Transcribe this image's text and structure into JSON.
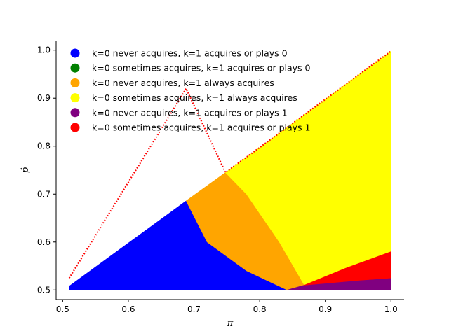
{
  "chart_data": {
    "type": "scatter",
    "title": "",
    "xlabel": "π",
    "ylabel": "p̂",
    "xlim": [
      0.49,
      1.02
    ],
    "ylim": [
      0.48,
      1.02
    ],
    "xticks": [
      0.5,
      0.6,
      0.7,
      0.8,
      0.9,
      1.0
    ],
    "xtick_labels": [
      "0.5",
      "0.6",
      "0.7",
      "0.8",
      "0.9",
      "1.0"
    ],
    "yticks": [
      0.5,
      0.6,
      0.7,
      0.8,
      0.9,
      1.0
    ],
    "ytick_labels": [
      "0.5",
      "0.6",
      "0.7",
      "0.8",
      "0.9",
      "1.0"
    ],
    "grid": false,
    "legend_position": "top-left",
    "series": [
      {
        "name": "k=0 never acquires, k=1 acquires or plays 0",
        "color": "#0000ff",
        "polygon": [
          [
            0.51,
            0.5
          ],
          [
            0.51,
            0.508
          ],
          [
            0.688,
            0.686
          ],
          [
            0.72,
            0.6
          ],
          [
            0.78,
            0.54
          ],
          [
            0.842,
            0.5
          ]
        ]
      },
      {
        "name": "k=0 sometimes acquires, k=1 acquires or plays 0",
        "color": "#008000",
        "polygon": []
      },
      {
        "name": "k=0 never acquires, k=1 always acquires",
        "color": "#ffa500",
        "polygon": [
          [
            0.688,
            0.686
          ],
          [
            0.748,
            0.745
          ],
          [
            0.78,
            0.7
          ],
          [
            0.83,
            0.6
          ],
          [
            0.868,
            0.51
          ],
          [
            0.842,
            0.5
          ],
          [
            0.78,
            0.54
          ],
          [
            0.72,
            0.6
          ]
        ]
      },
      {
        "name": "k=0 sometimes acquires, k=1 always acquires",
        "color": "#ffff00",
        "polygon": [
          [
            0.748,
            0.745
          ],
          [
            1.0,
            0.998
          ],
          [
            1.0,
            0.58
          ],
          [
            0.93,
            0.545
          ],
          [
            0.868,
            0.51
          ],
          [
            0.83,
            0.6
          ],
          [
            0.78,
            0.7
          ]
        ]
      },
      {
        "name": "k=0 never acquires, k=1 acquires or plays 1",
        "color": "#800080",
        "polygon": [
          [
            0.842,
            0.5
          ],
          [
            1.0,
            0.5
          ],
          [
            1.0,
            0.525
          ],
          [
            0.95,
            0.52
          ],
          [
            0.868,
            0.51
          ]
        ]
      },
      {
        "name": "k=0 sometimes acquires, k=1 acquires or plays 1",
        "color": "#ff0000",
        "polygon": [
          [
            0.868,
            0.51
          ],
          [
            0.93,
            0.545
          ],
          [
            1.0,
            0.58
          ],
          [
            1.0,
            0.525
          ],
          [
            0.95,
            0.52
          ]
        ]
      }
    ],
    "boundary": {
      "color": "#ff0000",
      "style": "dotted",
      "points": [
        [
          0.51,
          0.525
        ],
        [
          0.688,
          0.92
        ],
        [
          0.748,
          0.745
        ],
        [
          1.0,
          0.998
        ]
      ]
    }
  }
}
